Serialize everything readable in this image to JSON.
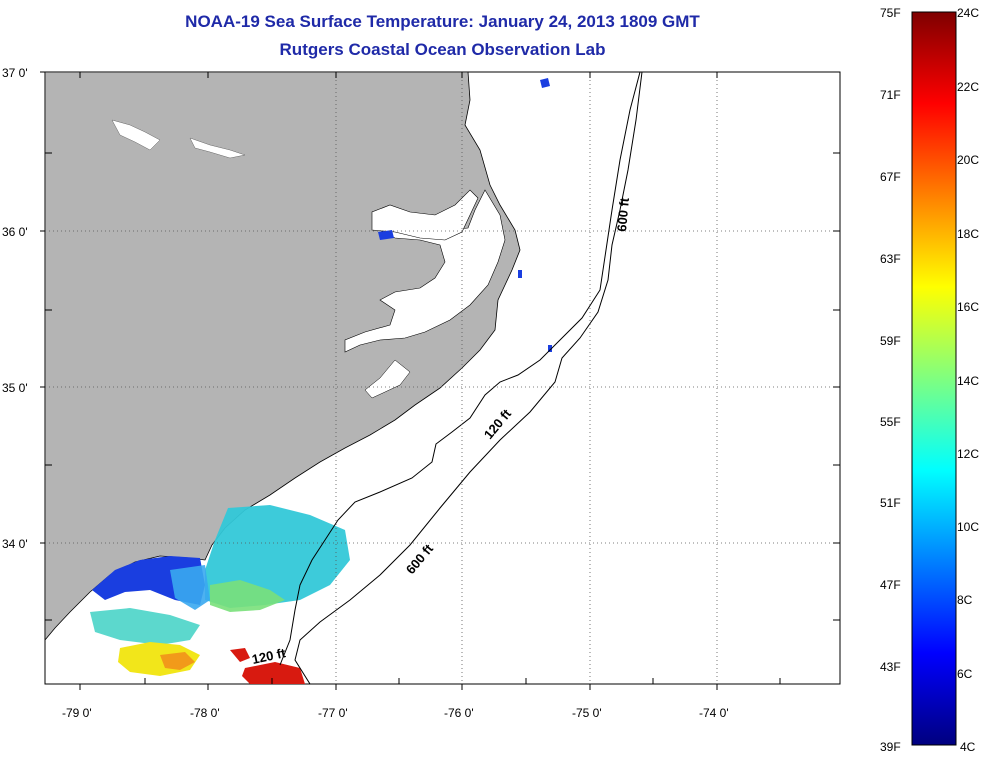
{
  "title": {
    "line1": "NOAA-19 Sea Surface Temperature:  January 24, 2013 1809 GMT",
    "line2": "Rutgers Coastal Ocean Observation Lab"
  },
  "axes": {
    "lat_labels": [
      "37 0'",
      "36 0'",
      "35 0'",
      "34 0'"
    ],
    "lon_labels": [
      "-79 0'",
      "-78 0'",
      "-77 0'",
      "-76 0'",
      "-75 0'",
      "-74 0'"
    ]
  },
  "contours": {
    "label_120_north": "120 ft",
    "label_120_south": "120 ft",
    "label_600_north": "600 ft",
    "label_600_south": "600 ft"
  },
  "colorbar": {
    "fahrenheit": [
      "75F",
      "71F",
      "67F",
      "63F",
      "59F",
      "55F",
      "51F",
      "47F",
      "43F",
      "39F"
    ],
    "celsius": [
      "24C",
      "22C",
      "20C",
      "18C",
      "16C",
      "14C",
      "12C",
      "10C",
      "8C",
      "6C",
      "4C"
    ]
  },
  "colors": {
    "land": "#b4b4b4",
    "title": "#1f2aa8"
  }
}
